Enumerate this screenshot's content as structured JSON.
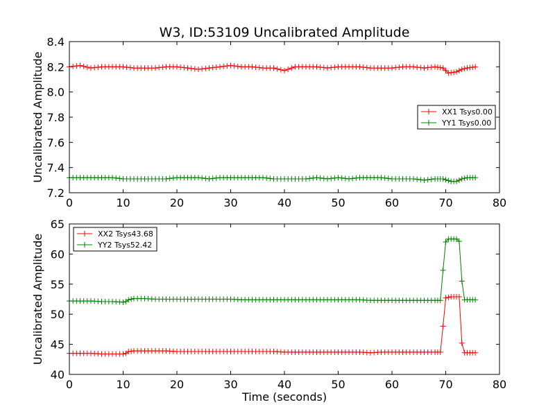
{
  "figure": {
    "title": "W3, ID:53109 Uncalibrated Amplitude",
    "xlabel": "Time (seconds)"
  },
  "chart_data": [
    {
      "type": "line",
      "ylabel": "Uncalibrated Amplitude",
      "xlim": [
        0,
        80
      ],
      "ylim": [
        7.2,
        8.4
      ],
      "xticks": [
        "0",
        "10",
        "20",
        "30",
        "40",
        "50",
        "60",
        "70",
        "80"
      ],
      "yticks": [
        "7.2",
        "7.4",
        "7.6",
        "7.8",
        "8.0",
        "8.2",
        "8.4"
      ],
      "legend_position": "center-right",
      "series": [
        {
          "name": "XX1 Tsys0.00",
          "color": "#ff0000",
          "points": [
            [
              0,
              8.2
            ],
            [
              2,
              8.21
            ],
            [
              4,
              8.19
            ],
            [
              6,
              8.2
            ],
            [
              8,
              8.2
            ],
            [
              10,
              8.2
            ],
            [
              12,
              8.19
            ],
            [
              14,
              8.19
            ],
            [
              16,
              8.19
            ],
            [
              18,
              8.2
            ],
            [
              20,
              8.2
            ],
            [
              22,
              8.19
            ],
            [
              24,
              8.18
            ],
            [
              26,
              8.19
            ],
            [
              28,
              8.2
            ],
            [
              30,
              8.21
            ],
            [
              32,
              8.2
            ],
            [
              34,
              8.2
            ],
            [
              36,
              8.19
            ],
            [
              38,
              8.19
            ],
            [
              40,
              8.17
            ],
            [
              42,
              8.2
            ],
            [
              44,
              8.2
            ],
            [
              46,
              8.2
            ],
            [
              48,
              8.19
            ],
            [
              50,
              8.2
            ],
            [
              52,
              8.2
            ],
            [
              54,
              8.2
            ],
            [
              56,
              8.19
            ],
            [
              58,
              8.19
            ],
            [
              60,
              8.19
            ],
            [
              62,
              8.2
            ],
            [
              64,
              8.2
            ],
            [
              66,
              8.19
            ],
            [
              68,
              8.2
            ],
            [
              69.5,
              8.19
            ],
            [
              70.5,
              8.15
            ],
            [
              72,
              8.16
            ],
            [
              73,
              8.18
            ],
            [
              74,
              8.19
            ],
            [
              75.5,
              8.2
            ]
          ]
        },
        {
          "name": "YY1 Tsys0.00",
          "color": "#008000",
          "points": [
            [
              0,
              7.32
            ],
            [
              2,
              7.32
            ],
            [
              4,
              7.32
            ],
            [
              6,
              7.32
            ],
            [
              8,
              7.32
            ],
            [
              10,
              7.31
            ],
            [
              12,
              7.31
            ],
            [
              14,
              7.31
            ],
            [
              16,
              7.31
            ],
            [
              18,
              7.31
            ],
            [
              20,
              7.32
            ],
            [
              22,
              7.32
            ],
            [
              24,
              7.32
            ],
            [
              26,
              7.31
            ],
            [
              28,
              7.32
            ],
            [
              30,
              7.32
            ],
            [
              32,
              7.32
            ],
            [
              34,
              7.32
            ],
            [
              36,
              7.32
            ],
            [
              38,
              7.31
            ],
            [
              40,
              7.31
            ],
            [
              42,
              7.31
            ],
            [
              44,
              7.31
            ],
            [
              46,
              7.32
            ],
            [
              48,
              7.31
            ],
            [
              50,
              7.32
            ],
            [
              52,
              7.31
            ],
            [
              54,
              7.32
            ],
            [
              56,
              7.32
            ],
            [
              58,
              7.32
            ],
            [
              60,
              7.31
            ],
            [
              62,
              7.31
            ],
            [
              64,
              7.31
            ],
            [
              66,
              7.3
            ],
            [
              68,
              7.31
            ],
            [
              69.5,
              7.31
            ],
            [
              71,
              7.29
            ],
            [
              72,
              7.29
            ],
            [
              73,
              7.31
            ],
            [
              74,
              7.32
            ],
            [
              75.5,
              7.32
            ]
          ]
        }
      ]
    },
    {
      "type": "line",
      "ylabel": "Uncalibrated Amplitude",
      "xlim": [
        0,
        80
      ],
      "ylim": [
        40,
        65
      ],
      "xticks": [
        "0",
        "10",
        "20",
        "30",
        "40",
        "50",
        "60",
        "70",
        "80"
      ],
      "yticks": [
        "40",
        "45",
        "50",
        "55",
        "60",
        "65"
      ],
      "legend_position": "top-left",
      "series": [
        {
          "name": "XX2 Tsys43.68",
          "color": "#ff0000",
          "points": [
            [
              0,
              43.5
            ],
            [
              2,
              43.5
            ],
            [
              4,
              43.5
            ],
            [
              6,
              43.4
            ],
            [
              8,
              43.4
            ],
            [
              10,
              43.4
            ],
            [
              10.5,
              43.5
            ],
            [
              11,
              43.8
            ],
            [
              12,
              43.9
            ],
            [
              14,
              43.9
            ],
            [
              16,
              43.9
            ],
            [
              18,
              43.9
            ],
            [
              20,
              43.8
            ],
            [
              22,
              43.8
            ],
            [
              24,
              43.8
            ],
            [
              26,
              43.8
            ],
            [
              28,
              43.8
            ],
            [
              30,
              43.8
            ],
            [
              32,
              43.8
            ],
            [
              34,
              43.8
            ],
            [
              36,
              43.8
            ],
            [
              38,
              43.8
            ],
            [
              40,
              43.7
            ],
            [
              42,
              43.7
            ],
            [
              44,
              43.7
            ],
            [
              46,
              43.7
            ],
            [
              48,
              43.7
            ],
            [
              50,
              43.7
            ],
            [
              52,
              43.7
            ],
            [
              54,
              43.7
            ],
            [
              56,
              43.6
            ],
            [
              58,
              43.7
            ],
            [
              60,
              43.7
            ],
            [
              62,
              43.7
            ],
            [
              64,
              43.7
            ],
            [
              66,
              43.7
            ],
            [
              68,
              43.7
            ],
            [
              69,
              43.7
            ],
            [
              69.5,
              48.0
            ],
            [
              70,
              52.7
            ],
            [
              71,
              52.9
            ],
            [
              72,
              52.9
            ],
            [
              72.5,
              52.9
            ],
            [
              73,
              45.2
            ],
            [
              73.5,
              43.6
            ],
            [
              74,
              43.6
            ],
            [
              75.5,
              43.6
            ]
          ]
        },
        {
          "name": "YY2 Tsys52.42",
          "color": "#008000",
          "points": [
            [
              0,
              52.2
            ],
            [
              2,
              52.2
            ],
            [
              4,
              52.2
            ],
            [
              6,
              52.1
            ],
            [
              8,
              52.1
            ],
            [
              10,
              52.0
            ],
            [
              10.5,
              52.1
            ],
            [
              11,
              52.4
            ],
            [
              12,
              52.6
            ],
            [
              14,
              52.6
            ],
            [
              16,
              52.5
            ],
            [
              18,
              52.5
            ],
            [
              20,
              52.5
            ],
            [
              22,
              52.5
            ],
            [
              24,
              52.5
            ],
            [
              26,
              52.5
            ],
            [
              28,
              52.5
            ],
            [
              30,
              52.5
            ],
            [
              32,
              52.4
            ],
            [
              34,
              52.4
            ],
            [
              36,
              52.4
            ],
            [
              38,
              52.4
            ],
            [
              40,
              52.4
            ],
            [
              42,
              52.4
            ],
            [
              44,
              52.4
            ],
            [
              46,
              52.4
            ],
            [
              48,
              52.4
            ],
            [
              50,
              52.4
            ],
            [
              52,
              52.4
            ],
            [
              54,
              52.4
            ],
            [
              56,
              52.3
            ],
            [
              58,
              52.3
            ],
            [
              60,
              52.3
            ],
            [
              62,
              52.3
            ],
            [
              64,
              52.3
            ],
            [
              66,
              52.3
            ],
            [
              68,
              52.3
            ],
            [
              69,
              52.3
            ],
            [
              69.5,
              57.3
            ],
            [
              70,
              62.0
            ],
            [
              70.5,
              62.5
            ],
            [
              71,
              62.5
            ],
            [
              72,
              62.5
            ],
            [
              72.5,
              62.1
            ],
            [
              73,
              55.5
            ],
            [
              73.5,
              52.4
            ],
            [
              74,
              52.4
            ],
            [
              75.5,
              52.4
            ]
          ]
        }
      ]
    }
  ]
}
